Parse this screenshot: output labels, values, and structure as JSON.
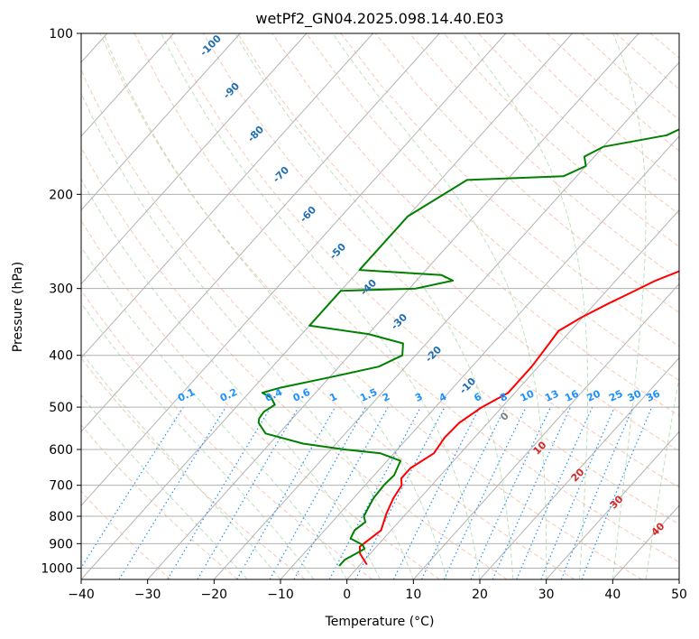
{
  "chart_data": {
    "type": "line",
    "title": "wetPf2_GN04.2025.098.14.40.E03",
    "xlabel": "Temperature (°C)",
    "ylabel": "Pressure (hPa)",
    "xlim": [
      -40,
      50
    ],
    "ylim": [
      1050,
      100
    ],
    "y_scale": "log",
    "grid": true,
    "x_ticks": [
      "−40",
      "−30",
      "−20",
      "−10",
      "0",
      "10",
      "20",
      "30",
      "40",
      "50"
    ],
    "y_ticks": [
      "100",
      "200",
      "300",
      "400",
      "500",
      "600",
      "700",
      "800",
      "900",
      "1000"
    ],
    "series": [
      {
        "color": "#ff0000",
        "x_label": "temperature",
        "points": [
          [
            1.0,
            985
          ],
          [
            -1.5,
            940
          ],
          [
            -2.5,
            912
          ],
          [
            -2.0,
            880
          ],
          [
            -1.5,
            850
          ],
          [
            -3.0,
            790
          ],
          [
            -4.0,
            740
          ],
          [
            -4.5,
            700
          ],
          [
            -5.5,
            680
          ],
          [
            -5.5,
            650
          ],
          [
            -4.0,
            610
          ],
          [
            -4.5,
            570
          ],
          [
            -4.3,
            535
          ],
          [
            -3.0,
            500
          ],
          [
            -1.0,
            470
          ],
          [
            -1.0,
            420
          ],
          [
            -1.5,
            380
          ],
          [
            -1.8,
            360
          ],
          [
            -0.2,
            340
          ],
          [
            2.0,
            320
          ],
          [
            4.0,
            305
          ],
          [
            6.0,
            290
          ],
          [
            9.0,
            275
          ],
          [
            13.0,
            255
          ],
          [
            17.0,
            235
          ],
          [
            21.0,
            215
          ],
          [
            24.5,
            200
          ],
          [
            26.0,
            190
          ],
          [
            29.0,
            175
          ],
          [
            32.0,
            160
          ],
          [
            36.0,
            145
          ],
          [
            39.0,
            135
          ],
          [
            41.0,
            128
          ],
          [
            44.0,
            120
          ],
          [
            47.0,
            113
          ],
          [
            48.5,
            108
          ],
          [
            49.3,
            104
          ],
          [
            50.0,
            100
          ]
        ]
      },
      {
        "color": "#008000",
        "x_label": "dewpoint",
        "points": [
          [
            -3.0,
            990
          ],
          [
            -3.0,
            965
          ],
          [
            -2.0,
            935
          ],
          [
            -1.5,
            920
          ],
          [
            -2.3,
            905
          ],
          [
            -5.0,
            880
          ],
          [
            -5.5,
            850
          ],
          [
            -5.0,
            820
          ],
          [
            -6.0,
            800
          ],
          [
            -6.5,
            770
          ],
          [
            -7.0,
            740
          ],
          [
            -7.2,
            700
          ],
          [
            -7.0,
            670
          ],
          [
            -8.0,
            630
          ],
          [
            -12.0,
            610
          ],
          [
            -18.0,
            600
          ],
          [
            -25.0,
            585
          ],
          [
            -32.0,
            560
          ],
          [
            -34.5,
            535
          ],
          [
            -35.0,
            525
          ],
          [
            -35.2,
            510
          ],
          [
            -34.5,
            495
          ],
          [
            -36.0,
            480
          ],
          [
            -38.0,
            470
          ],
          [
            -36.0,
            460
          ],
          [
            -30.0,
            440
          ],
          [
            -24.0,
            420
          ],
          [
            -22.0,
            400
          ],
          [
            -23.5,
            380
          ],
          [
            -30.0,
            365
          ],
          [
            -40.0,
            352
          ],
          [
            -40.0,
            303
          ],
          [
            -29.0,
            300
          ],
          [
            -24.5,
            290
          ],
          [
            -27.0,
            283
          ],
          [
            -40.0,
            277
          ],
          [
            -40.0,
            220
          ],
          [
            -36.0,
            188
          ],
          [
            -22.0,
            185
          ],
          [
            -20.0,
            177
          ],
          [
            -21.5,
            170
          ],
          [
            -20.0,
            163
          ],
          [
            -12.0,
            155
          ],
          [
            -10.0,
            148
          ],
          [
            -10.0,
            140
          ],
          [
            -10.0,
            125
          ],
          [
            -10.5,
            118
          ],
          [
            -9.0,
            108
          ],
          [
            -5.5,
            100
          ]
        ]
      }
    ],
    "dry_adiabat_labels": [
      "-100",
      "-90",
      "-80",
      "-70",
      "-60",
      "-50",
      "-40",
      "-30",
      "-20",
      "-10",
      "0",
      "10",
      "20",
      "30",
      "40"
    ],
    "mixing_ratio_labels": [
      "0.1",
      "0.2",
      "0.4",
      "0.6",
      "1",
      "1.5",
      "2",
      "3",
      "4",
      "6",
      "8",
      "10",
      "13",
      "16",
      "20",
      "25",
      "30",
      "36"
    ],
    "colors": {
      "isotherm": "#b3b3b3",
      "dry_adiabat": "#f4a582",
      "moist_adiabat": "#a6d8a6",
      "mixing_ratio": "#1e90ff",
      "dry_adiabat_label": "#1f6fb2",
      "warm_label": "#d62728",
      "zero_label": "#808080"
    }
  }
}
